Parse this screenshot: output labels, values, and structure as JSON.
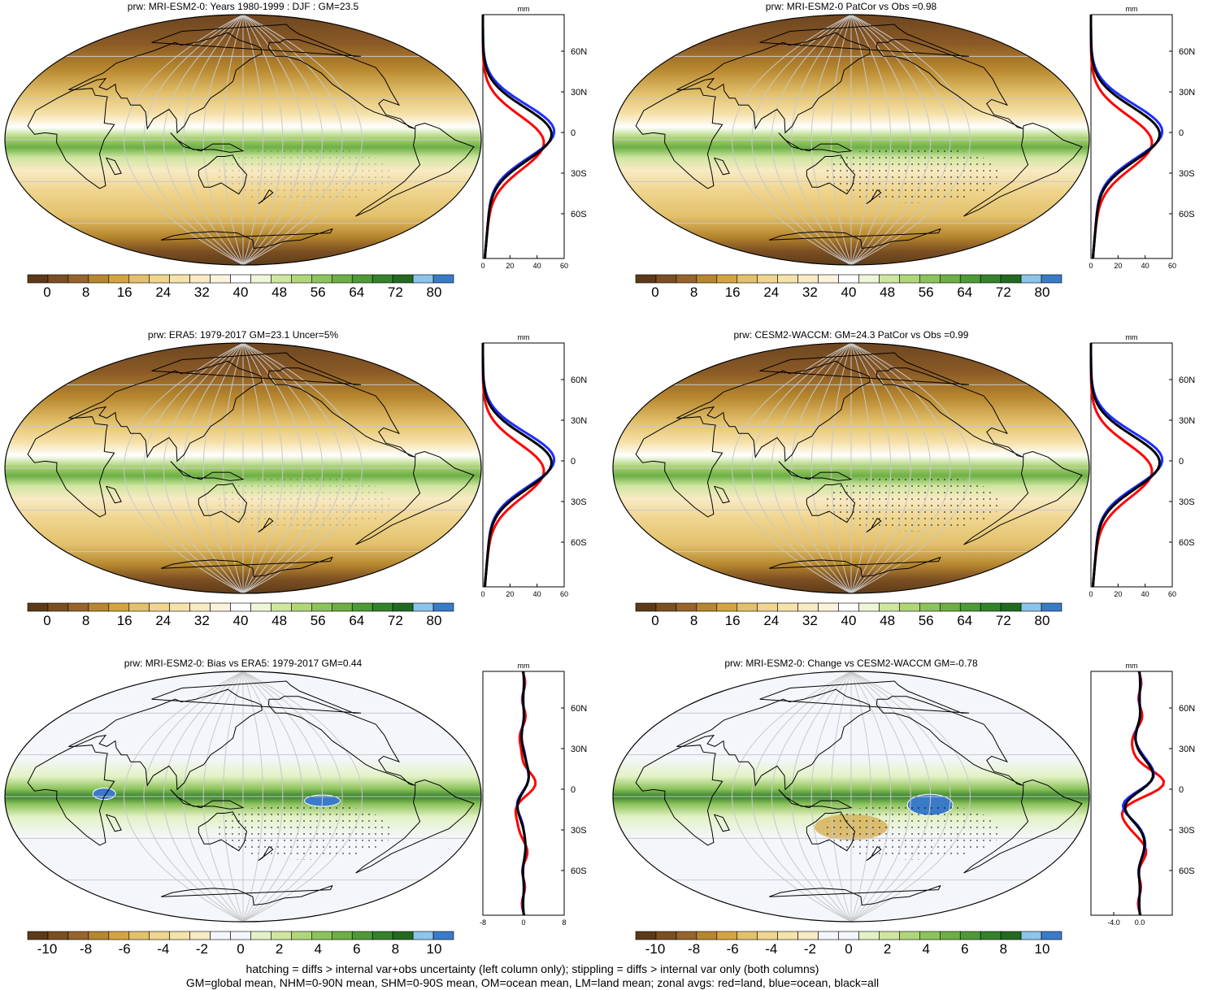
{
  "panels": [
    {
      "title": "prw: MRI-ESM2-0: Years 1980-1999 : DJF : GM=23.5",
      "kind": "clim",
      "zonal_axis_unit": "mm",
      "zonal_lat_labels": [
        "60N",
        "30N",
        "0",
        "30S",
        "60S"
      ],
      "zonal_x_ticks": [
        "0",
        "20",
        "40",
        "60"
      ],
      "colorbar_labels": [
        "0",
        "8",
        "16",
        "24",
        "32",
        "40",
        "48",
        "56",
        "64",
        "72",
        "80"
      ]
    },
    {
      "title": "prw: MRI-ESM2-0 PatCor vs Obs =0.98",
      "kind": "clim",
      "zonal_axis_unit": "mm",
      "zonal_lat_labels": [
        "60N",
        "30N",
        "0",
        "30S",
        "60S"
      ],
      "zonal_x_ticks": [
        "0",
        "20",
        "40",
        "60"
      ],
      "colorbar_labels": [
        "0",
        "8",
        "16",
        "24",
        "32",
        "40",
        "48",
        "56",
        "64",
        "72",
        "80"
      ]
    },
    {
      "title": "prw: ERA5: 1979-2017 GM=23.1 Uncer=5%",
      "kind": "clim",
      "zonal_axis_unit": "mm",
      "zonal_lat_labels": [
        "60N",
        "30N",
        "0",
        "30S",
        "60S"
      ],
      "zonal_x_ticks": [
        "0",
        "20",
        "40",
        "60"
      ],
      "colorbar_labels": [
        "0",
        "8",
        "16",
        "24",
        "32",
        "40",
        "48",
        "56",
        "64",
        "72",
        "80"
      ]
    },
    {
      "title": "prw: CESM2-WACCM: GM=24.3 PatCor vs Obs =0.99",
      "kind": "clim",
      "zonal_axis_unit": "mm",
      "zonal_lat_labels": [
        "60N",
        "30N",
        "0",
        "30S",
        "60S"
      ],
      "zonal_x_ticks": [
        "0",
        "20",
        "40",
        "60"
      ],
      "colorbar_labels": [
        "0",
        "8",
        "16",
        "24",
        "32",
        "40",
        "48",
        "56",
        "64",
        "72",
        "80"
      ]
    },
    {
      "title": "prw: MRI-ESM2-0: Bias vs ERA5: 1979-2017 GM=0.44",
      "kind": "diff",
      "zonal_axis_unit": "mm",
      "zonal_lat_labels": [
        "60N",
        "30N",
        "0",
        "30S",
        "60S"
      ],
      "zonal_x_ticks": [
        "-8",
        "0",
        "8"
      ],
      "colorbar_labels": [
        "-10",
        "-8",
        "-6",
        "-4",
        "-2",
        "0",
        "2",
        "4",
        "6",
        "8",
        "10"
      ]
    },
    {
      "title": "prw: MRI-ESM2-0: Change vs CESM2-WACCM GM=-0.78",
      "kind": "diff",
      "zonal_axis_unit": "mm",
      "zonal_lat_labels": [
        "60N",
        "30N",
        "0",
        "30S",
        "60S"
      ],
      "zonal_x_ticks": [
        "-4.0",
        "0.0"
      ],
      "colorbar_labels": [
        "-10",
        "-8",
        "-6",
        "-4",
        "-2",
        "0",
        "2",
        "4",
        "6",
        "8",
        "10"
      ]
    }
  ],
  "colors": {
    "clim_palette": [
      "#5c3a18",
      "#7b4f22",
      "#96642c",
      "#b7872e",
      "#d3a53f",
      "#e3c16c",
      "#efd58e",
      "#f5e2ac",
      "#f8eac4",
      "#fbf3dd",
      "#ffffff",
      "#eef6d8",
      "#cfe6a0",
      "#b0d67a",
      "#8dc35b",
      "#6daf45",
      "#4e9a38",
      "#35822c",
      "#236a20",
      "#8cc4ea",
      "#3a7bc8"
    ],
    "diff_palette": [
      "#5c3a18",
      "#7b4f22",
      "#96642c",
      "#b7872e",
      "#d3a53f",
      "#e3c16c",
      "#efd58e",
      "#f5e2ac",
      "#f8eac4",
      "#f4f6fb",
      "#f4f6fb",
      "#e3f2c6",
      "#cfe6a0",
      "#b0d67a",
      "#8dc35b",
      "#6daf45",
      "#4e9a38",
      "#35822c",
      "#236a20",
      "#8cc4ea",
      "#3a7bc8"
    ],
    "land_line": "#000000",
    "grid_line": "#c8c8c8",
    "zonal_land": "#ff0000",
    "zonal_ocean": "#1f2cff",
    "zonal_all": "#000000"
  },
  "footer": {
    "line1": "hatching = diffs > internal var+obs uncertainty (left column only); stippling = diffs > internal var only (both columns)",
    "line2": "GM=global mean, NHM=0-90N mean, SHM=0-90S mean, OM=ocean mean, LM=land mean; zonal avgs: red=land, blue=ocean, black=all"
  }
}
